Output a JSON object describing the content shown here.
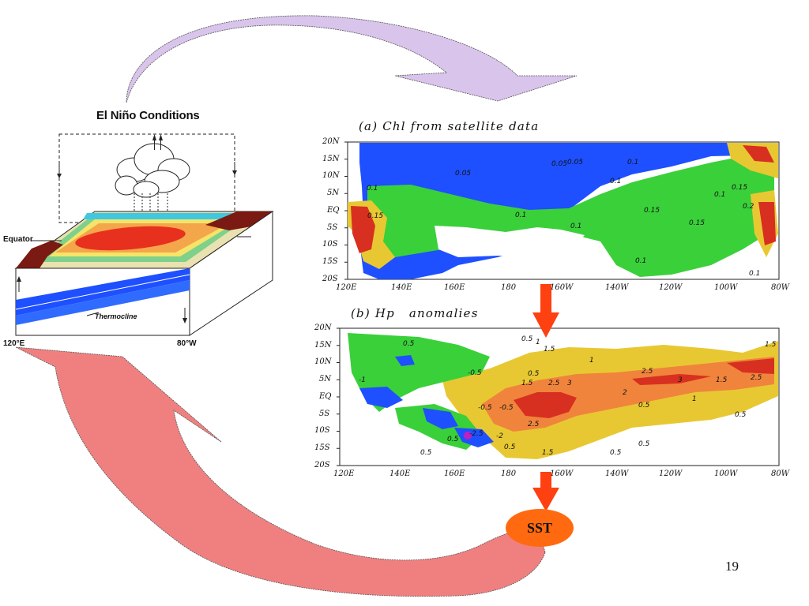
{
  "diagram": {
    "title": "El Niño Conditions",
    "equator_label": "Equator",
    "thermocline_label": "Thermocline",
    "lon_left": "120°E",
    "lon_right": "80°W"
  },
  "panel_a": {
    "title": "(a) Chl from satellite data",
    "lat_ticks": [
      "20N",
      "15N",
      "10N",
      "5N",
      "EQ",
      "5S",
      "10S",
      "15S",
      "20S"
    ],
    "lon_ticks": [
      "120E",
      "140E",
      "160E",
      "180",
      "160W",
      "140W",
      "120W",
      "100W",
      "80W"
    ],
    "contour_labels": [
      "0.05",
      "0.05",
      "0.05",
      "0.1",
      "0.1",
      "0.1",
      "0.1",
      "0.15",
      "0.15",
      "0.15",
      "0.1",
      "0.1",
      "0.1",
      "0.2",
      "0.15",
      "0.1"
    ]
  },
  "panel_b": {
    "title": "(b) Hp   anomalies",
    "lat_ticks": [
      "20N",
      "15N",
      "10N",
      "5N",
      "EQ",
      "5S",
      "10S",
      "15S",
      "20S"
    ],
    "lon_ticks": [
      "120E",
      "140E",
      "160E",
      "180",
      "160W",
      "140W",
      "120W",
      "100W",
      "80W"
    ],
    "contour_labels": [
      "0.5",
      "1",
      "1.5",
      "0.5",
      "1",
      "1.5",
      "2.5",
      "3",
      "2",
      "2.5",
      "3",
      "1.5",
      "2.5",
      "0.5",
      "1",
      "-0.5",
      "-0.5",
      "-0.5",
      "-1",
      "-2.5",
      "-2",
      "0.5",
      "2.5",
      "0.5",
      "1.5",
      "0.5",
      "0.5",
      "0.5",
      "0.5",
      "0.5",
      "1.5"
    ]
  },
  "sst_label": "SST",
  "page_number": "19",
  "colors": {
    "purple_arrow": "#d9c4ec",
    "red_arrow": "#f08080",
    "flow_arrow": "#ff4010",
    "sst_fill": "#ff6a10",
    "ocean_blue": "#1e50ff",
    "chl_green": "#3ad03a",
    "anom_yellow": "#e8c832",
    "anom_orange": "#f0843c",
    "anom_red": "#d83020"
  }
}
